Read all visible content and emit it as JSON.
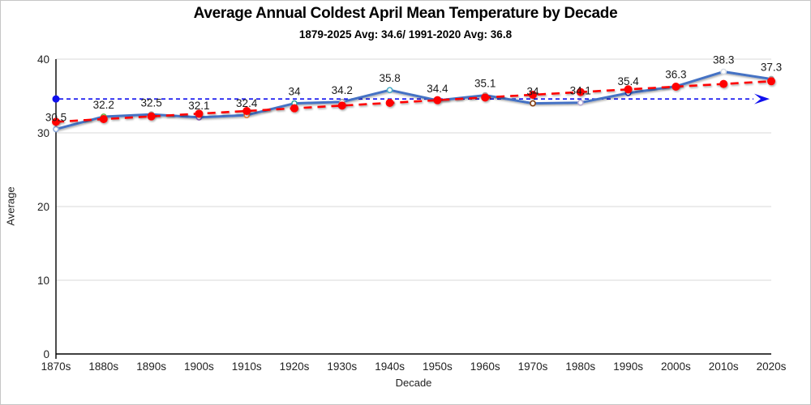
{
  "window": {
    "background": "#ffffff",
    "border_color": "#c6c6c6"
  },
  "chart_data": {
    "type": "line",
    "title": "Average Annual Coldest April Mean Temperature by Decade",
    "subtitle": "1879-2025 Avg: 34.6/ 1991-2020 Avg: 36.8",
    "xlabel": "Decade",
    "ylabel": "Average",
    "categories": [
      "1870s",
      "1880s",
      "1890s",
      "1900s",
      "1910s",
      "1920s",
      "1930s",
      "1940s",
      "1950s",
      "1960s",
      "1970s",
      "1980s",
      "1990s",
      "2000s",
      "2010s",
      "2020s"
    ],
    "series": [
      {
        "name": "decade-average",
        "type": "line",
        "color": "#4472C4",
        "values": [
          30.5,
          32.2,
          32.5,
          32.1,
          32.4,
          34,
          34.2,
          35.8,
          34.4,
          35.1,
          34,
          34.1,
          35.4,
          36.3,
          38.3,
          37.3
        ],
        "data_labels": [
          "30.5",
          "32.2",
          "32.5",
          "32.1",
          "32.4",
          "34",
          "34.2",
          "35.8",
          "34.4",
          "35.1",
          "34",
          "34.1",
          "35.4",
          "36.3",
          "38.3",
          "37.3"
        ],
        "marker_colors": [
          "#8FAADC",
          "#70AD47",
          "#A5A5A5",
          "#7C4FB0",
          "#ED7D31",
          "#2E9E9E",
          "#A5A5A5",
          "#4BACC6",
          "#A5A5A5",
          "#A5A5A5",
          "#843C0C",
          "#B4A7D6",
          "#1F3BB3",
          "#A5A5A5",
          "#D6DCE5",
          "#A5A5A5"
        ]
      },
      {
        "name": "linear-trend",
        "type": "trendline",
        "color": "#FF0000",
        "dashed": true,
        "start": 31.5,
        "end": 37.0
      },
      {
        "name": "overall-average-line",
        "type": "reference-line",
        "color": "#1010EE",
        "value": 34.6,
        "arrow": true
      }
    ],
    "ylim": [
      0,
      40
    ],
    "yticks": [
      0,
      10,
      20,
      30,
      40
    ],
    "grid": "horizontal",
    "gridline_color": "#D9D9D9",
    "axis_color": "#000000",
    "label_color": "#1a1a1a",
    "tick_color": "#222222"
  }
}
